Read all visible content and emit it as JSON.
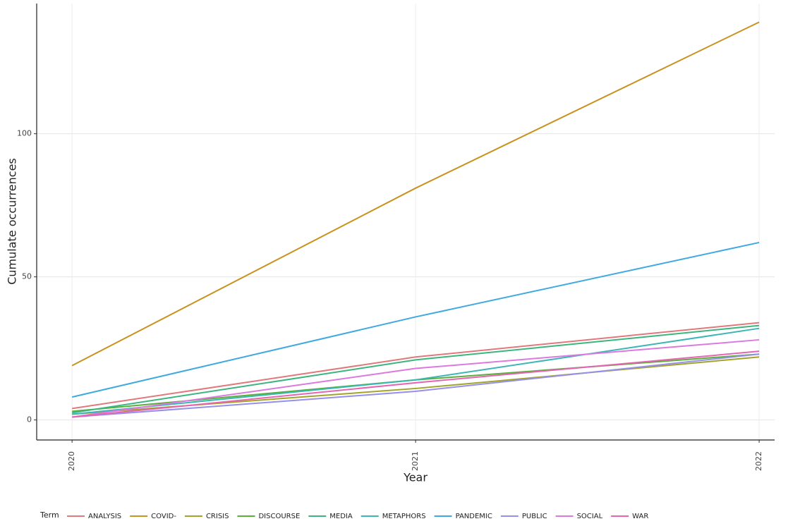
{
  "chart_data": {
    "type": "line",
    "x_label": "Year",
    "y_label": "Cumulate occurrences",
    "legend_title": "Term",
    "x": [
      2020,
      2021,
      2022
    ],
    "xlim": [
      2019.897,
      2022.045
    ],
    "xticks": [
      2020,
      2021,
      2022
    ],
    "ylim": [
      -7,
      145.5
    ],
    "yticks": [
      0,
      50,
      100
    ],
    "grid": true,
    "legend_position": "bottom",
    "series": [
      {
        "name": "ANALYSIS",
        "color": "#e3787a",
        "values": [
          4,
          22,
          34
        ]
      },
      {
        "name": "COVID-",
        "color": "#c8921e",
        "values": [
          19,
          81,
          139
        ]
      },
      {
        "name": "CRISIS",
        "color": "#a3a32a",
        "values": [
          2,
          11,
          22
        ]
      },
      {
        "name": "DISCOURSE",
        "color": "#5aae3a",
        "values": [
          3,
          14,
          23
        ]
      },
      {
        "name": "MEDIA",
        "color": "#3bb57f",
        "values": [
          2.5,
          21,
          33
        ]
      },
      {
        "name": "METAPHORS",
        "color": "#3bb6b6",
        "values": [
          2,
          14,
          32
        ]
      },
      {
        "name": "PANDEMIC",
        "color": "#3fa9e0",
        "values": [
          8,
          36,
          62
        ]
      },
      {
        "name": "PUBLIC",
        "color": "#9590ea",
        "values": [
          1,
          10,
          23
        ]
      },
      {
        "name": "SOCIAL",
        "color": "#dc79e0",
        "values": [
          1,
          18,
          28
        ]
      },
      {
        "name": "WAR",
        "color": "#e565b2",
        "values": [
          1,
          13,
          24
        ]
      }
    ]
  }
}
